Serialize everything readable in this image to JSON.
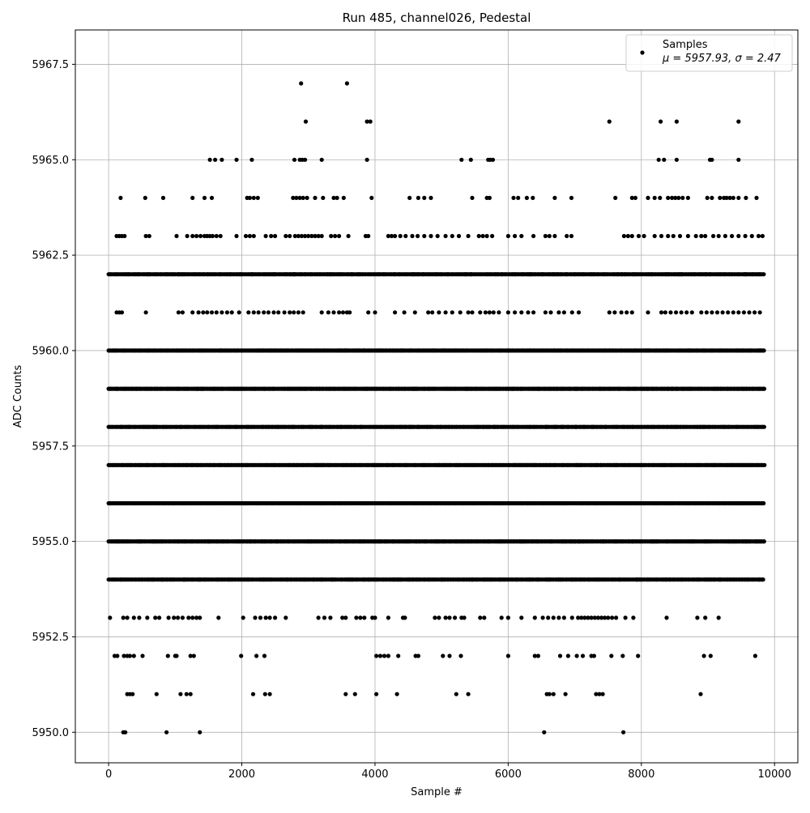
{
  "chart_data": {
    "type": "scatter",
    "title": "Run 485, channel026, Pedestal",
    "xlabel": "Sample #",
    "ylabel": "ADC Counts",
    "xlim": [
      -500,
      10350
    ],
    "ylim": [
      5949.2,
      5968.4
    ],
    "xticks": [
      0,
      2000,
      4000,
      6000,
      8000,
      10000
    ],
    "xtick_labels": [
      "0",
      "2000",
      "4000",
      "6000",
      "8000",
      "10000"
    ],
    "yticks": [
      5950.0,
      5952.5,
      5955.0,
      5957.5,
      5960.0,
      5962.5,
      5965.0,
      5967.5
    ],
    "ytick_labels": [
      "5950.0",
      "5952.5",
      "5955.0",
      "5957.5",
      "5960.0",
      "5962.5",
      "5965.0",
      "5967.5"
    ],
    "grid": true,
    "legend": {
      "placement": "top-right",
      "series_label": "Samples",
      "stats_label": "μ = 5957.93, σ = 2.47"
    },
    "marker_color": "#000000",
    "series": [
      {
        "levels": [
          {
            "y": 5967,
            "x": [
              2890,
              3580
            ]
          },
          {
            "y": 5966,
            "x": [
              2960,
              3880,
              3930,
              7520,
              8290,
              8530,
              9460
            ]
          },
          {
            "y": 5965,
            "x": [
              1520,
              1600,
              1700,
              1920,
              2150,
              2790,
              2870,
              2910,
              2950,
              3200,
              3880,
              5300,
              5440,
              5700,
              5730,
              5770,
              8260,
              8340,
              8530,
              9030,
              9060,
              9460
            ]
          },
          {
            "y": 5964,
            "x": [
              180,
              550,
              820,
              1260,
              1440,
              1550,
              2080,
              2120,
              2180,
              2240,
              2770,
              2820,
              2870,
              2920,
              2980,
              3100,
              3220,
              3380,
              3430,
              3530,
              3950,
              4520,
              4650,
              4740,
              4840,
              5460,
              5680,
              5720,
              6080,
              6150,
              6280,
              6370,
              6700,
              6950,
              7610,
              7860,
              7910,
              8100,
              8200,
              8280,
              8400,
              8460,
              8510,
              8560,
              8620,
              8700,
              8990,
              9060,
              9180,
              9240,
              9280,
              9330,
              9380,
              9460,
              9570,
              9730
            ]
          },
          {
            "y": 5963,
            "x": [
              120,
              160,
              200,
              240,
              560,
              610,
              1020,
              1180,
              1260,
              1320,
              1380,
              1440,
              1480,
              1520,
              1560,
              1620,
              1680,
              1920,
              2060,
              2120,
              2180,
              2360,
              2440,
              2500,
              2660,
              2720,
              2800,
              2850,
              2900,
              2950,
              3000,
              3050,
              3100,
              3150,
              3200,
              3340,
              3400,
              3460,
              3600,
              3860,
              3900,
              4200,
              4250,
              4300,
              4380,
              4460,
              4560,
              4640,
              4740,
              4840,
              4940,
              5060,
              5160,
              5260,
              5400,
              5560,
              5620,
              5680,
              5760,
              6000,
              6100,
              6200,
              6380,
              6560,
              6620,
              6700,
              6880,
              6950,
              7740,
              7800,
              7860,
              7960,
              8040,
              8200,
              8300,
              8400,
              8480,
              8580,
              8700,
              8820,
              8900,
              8960,
              9080,
              9160,
              9260,
              9360,
              9460,
              9560,
              9660,
              9760,
              9820
            ]
          },
          {
            "y": 5961,
            "x": [
              120,
              160,
              200,
              560,
              1050,
              1110,
              1260,
              1350,
              1420,
              1480,
              1550,
              1620,
              1700,
              1780,
              1850,
              1960,
              2100,
              2180,
              2250,
              2330,
              2400,
              2480,
              2550,
              2640,
              2720,
              2780,
              2850,
              2920,
              3200,
              3300,
              3380,
              3460,
              3520,
              3580,
              3620,
              3900,
              4000,
              4300,
              4440,
              4600,
              4800,
              4860,
              4960,
              5060,
              5160,
              5280,
              5400,
              5460,
              5580,
              5660,
              5720,
              5780,
              5860,
              6000,
              6100,
              6200,
              6300,
              6380,
              6560,
              6640,
              6760,
              6840,
              6960,
              7060,
              7520,
              7600,
              7700,
              7780,
              7860,
              8100,
              8300,
              8360,
              8440,
              8520,
              8600,
              8680,
              8760,
              8900,
              8980,
              9060,
              9140,
              9220,
              9300,
              9380,
              9460,
              9540,
              9620,
              9700,
              9780
            ]
          },
          {
            "y": 5953,
            "x": [
              20,
              220,
              280,
              380,
              460,
              580,
              700,
              760,
              900,
              980,
              1040,
              1110,
              1200,
              1260,
              1320,
              1370,
              1650,
              2020,
              2200,
              2280,
              2360,
              2420,
              2500,
              2660,
              3150,
              3240,
              3330,
              3510,
              3560,
              3720,
              3780,
              3840,
              3960,
              4000,
              4200,
              4420,
              4450,
              4900,
              4960,
              5060,
              5120,
              5200,
              5300,
              5340,
              5580,
              5640,
              5900,
              6000,
              6200,
              6400,
              6520,
              6600,
              6680,
              6760,
              6840,
              6960,
              7050,
              7100,
              7150,
              7200,
              7250,
              7300,
              7350,
              7400,
              7450,
              7500,
              7560,
              7620,
              7760,
              7880,
              8380,
              8840,
              8960,
              9160
            ]
          },
          {
            "y": 5952,
            "x": [
              90,
              130,
              230,
              280,
              320,
              380,
              510,
              890,
              1000,
              1020,
              1230,
              1280,
              1990,
              2220,
              2340,
              4020,
              4080,
              4140,
              4200,
              4350,
              4610,
              4650,
              5020,
              5120,
              5290,
              6000,
              6400,
              6450,
              6780,
              6900,
              7030,
              7120,
              7250,
              7290,
              7550,
              7720,
              7950,
              8940,
              9040,
              9710
            ]
          },
          {
            "y": 5951,
            "x": [
              280,
              320,
              360,
              720,
              1080,
              1170,
              1230,
              2170,
              2350,
              2420,
              3560,
              3700,
              4020,
              4330,
              5220,
              5400,
              6580,
              6620,
              6680,
              6860,
              7320,
              7370,
              7420,
              8890
            ]
          },
          {
            "y": 5950,
            "x": [
              220,
              250,
              870,
              1370,
              6540,
              7730
            ]
          }
        ],
        "dense_levels": [
          5962,
          5960,
          5959,
          5958,
          5957,
          5956,
          5955,
          5954
        ],
        "x_range": [
          0,
          9850
        ],
        "n_samples": 9850
      }
    ]
  }
}
